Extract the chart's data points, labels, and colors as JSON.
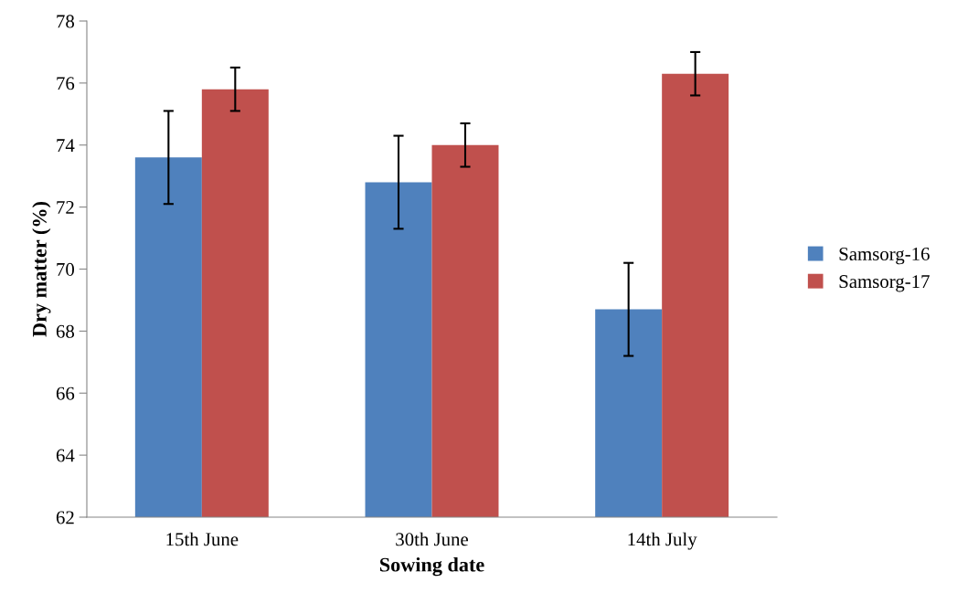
{
  "chart_data": {
    "type": "bar",
    "xlabel": "Sowing date",
    "ylabel": "Dry matter (%)",
    "categories": [
      "15th June",
      "30th June",
      "14th July"
    ],
    "series": [
      {
        "name": "Samsorg-16",
        "color": "#4f81bd",
        "values": [
          73.6,
          72.8,
          68.7
        ],
        "errors": [
          1.5,
          1.5,
          1.5
        ]
      },
      {
        "name": "Samsorg-17",
        "color": "#c0504d",
        "values": [
          75.8,
          74.0,
          76.3
        ],
        "errors": [
          0.7,
          0.7,
          0.7
        ]
      }
    ],
    "ylim": [
      62,
      78
    ],
    "yticks": [
      62,
      64,
      66,
      68,
      70,
      72,
      74,
      76,
      78
    ],
    "grid": false,
    "legend": "right"
  }
}
